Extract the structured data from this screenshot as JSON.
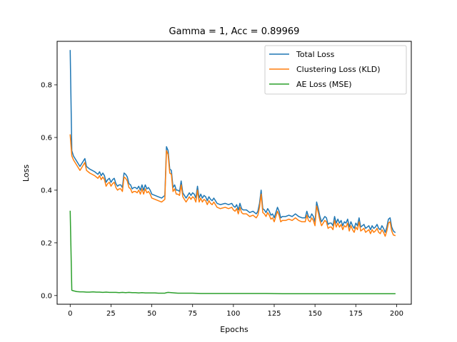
{
  "chart_data": {
    "type": "line",
    "title": "Gamma = 1, Acc = 0.89969",
    "xlabel": "Epochs",
    "ylabel": "Loss",
    "xlim": [
      -8,
      209
    ],
    "ylim": [
      -0.033,
      0.965
    ],
    "xticks": [
      0,
      25,
      50,
      75,
      100,
      125,
      150,
      175,
      200
    ],
    "yticks": [
      0.0,
      0.2,
      0.4,
      0.6,
      0.8
    ],
    "ytick_labels": [
      "0.0",
      "0.2",
      "0.4",
      "0.6",
      "0.8"
    ],
    "grid": false,
    "legend_position": "upper-right",
    "series": [
      {
        "name": "Total Loss",
        "color": "#1f77b4",
        "x": [
          0,
          1,
          2,
          4,
          6,
          8,
          9,
          10,
          12,
          15,
          17,
          18,
          19,
          20,
          21,
          22,
          23,
          24,
          25,
          26,
          27,
          28,
          29,
          30,
          31,
          32,
          33,
          34,
          35,
          36,
          37,
          38,
          39,
          40,
          41,
          42,
          43,
          44,
          45,
          46,
          47,
          48,
          49,
          50,
          52,
          54,
          56,
          58,
          59,
          60,
          61,
          62,
          63,
          64,
          65,
          66,
          67,
          68,
          69,
          70,
          71,
          72,
          73,
          74,
          75,
          76,
          77,
          78,
          79,
          80,
          81,
          82,
          83,
          84,
          85,
          86,
          87,
          88,
          90,
          92,
          95,
          97,
          99,
          100,
          101,
          102,
          103,
          104,
          105,
          106,
          108,
          110,
          112,
          114,
          115,
          116,
          117,
          118,
          119,
          120,
          121,
          122,
          123,
          124,
          125,
          126,
          127,
          128,
          129,
          130,
          132,
          134,
          136,
          138,
          140,
          142,
          144,
          145,
          146,
          147,
          148,
          149,
          150,
          151,
          152,
          153,
          154,
          155,
          156,
          157,
          158,
          159,
          160,
          161,
          162,
          163,
          164,
          165,
          166,
          167,
          168,
          169,
          170,
          171,
          172,
          173,
          174,
          175,
          176,
          177,
          178,
          179,
          180,
          181,
          182,
          183,
          184,
          185,
          186,
          187,
          188,
          189,
          190,
          191,
          192,
          193,
          194,
          195,
          196,
          197,
          198,
          199
        ],
        "y": [
          0.93,
          0.55,
          0.53,
          0.51,
          0.49,
          0.51,
          0.52,
          0.49,
          0.48,
          0.47,
          0.46,
          0.47,
          0.455,
          0.465,
          0.455,
          0.43,
          0.44,
          0.445,
          0.43,
          0.44,
          0.445,
          0.425,
          0.415,
          0.42,
          0.42,
          0.41,
          0.465,
          0.46,
          0.45,
          0.425,
          0.42,
          0.405,
          0.41,
          0.41,
          0.405,
          0.415,
          0.4,
          0.42,
          0.4,
          0.42,
          0.405,
          0.41,
          0.4,
          0.385,
          0.38,
          0.375,
          0.37,
          0.38,
          0.565,
          0.55,
          0.48,
          0.475,
          0.41,
          0.42,
          0.4,
          0.4,
          0.395,
          0.435,
          0.39,
          0.38,
          0.37,
          0.38,
          0.39,
          0.38,
          0.39,
          0.385,
          0.37,
          0.415,
          0.37,
          0.385,
          0.37,
          0.38,
          0.375,
          0.36,
          0.375,
          0.365,
          0.36,
          0.37,
          0.35,
          0.345,
          0.35,
          0.345,
          0.35,
          0.34,
          0.335,
          0.345,
          0.325,
          0.35,
          0.33,
          0.325,
          0.325,
          0.315,
          0.32,
          0.31,
          0.32,
          0.35,
          0.4,
          0.33,
          0.325,
          0.315,
          0.33,
          0.32,
          0.305,
          0.31,
          0.295,
          0.315,
          0.335,
          0.32,
          0.295,
          0.3,
          0.3,
          0.305,
          0.3,
          0.31,
          0.3,
          0.295,
          0.295,
          0.32,
          0.3,
          0.295,
          0.31,
          0.3,
          0.28,
          0.355,
          0.33,
          0.3,
          0.28,
          0.29,
          0.3,
          0.295,
          0.27,
          0.275,
          0.275,
          0.265,
          0.3,
          0.275,
          0.29,
          0.275,
          0.285,
          0.265,
          0.28,
          0.275,
          0.29,
          0.26,
          0.28,
          0.265,
          0.255,
          0.275,
          0.265,
          0.295,
          0.26,
          0.265,
          0.27,
          0.255,
          0.26,
          0.265,
          0.25,
          0.265,
          0.255,
          0.26,
          0.27,
          0.255,
          0.25,
          0.265,
          0.255,
          0.24,
          0.26,
          0.29,
          0.295,
          0.26,
          0.245,
          0.24
        ]
      },
      {
        "name": "Clustering Loss (KLD)",
        "color": "#ff7f0e",
        "x": [
          0,
          1,
          2,
          4,
          6,
          8,
          9,
          10,
          12,
          15,
          17,
          18,
          19,
          20,
          21,
          22,
          23,
          24,
          25,
          26,
          27,
          28,
          29,
          30,
          31,
          32,
          33,
          34,
          35,
          36,
          37,
          38,
          39,
          40,
          41,
          42,
          43,
          44,
          45,
          46,
          47,
          48,
          49,
          50,
          52,
          54,
          56,
          58,
          59,
          60,
          61,
          62,
          63,
          64,
          65,
          66,
          67,
          68,
          69,
          70,
          71,
          72,
          73,
          74,
          75,
          76,
          77,
          78,
          79,
          80,
          81,
          82,
          83,
          84,
          85,
          86,
          87,
          88,
          90,
          92,
          95,
          97,
          99,
          100,
          101,
          102,
          103,
          104,
          105,
          106,
          108,
          110,
          112,
          114,
          115,
          116,
          117,
          118,
          119,
          120,
          121,
          122,
          123,
          124,
          125,
          126,
          127,
          128,
          129,
          130,
          132,
          134,
          136,
          138,
          140,
          142,
          144,
          145,
          146,
          147,
          148,
          149,
          150,
          151,
          152,
          153,
          154,
          155,
          156,
          157,
          158,
          159,
          160,
          161,
          162,
          163,
          164,
          165,
          166,
          167,
          168,
          169,
          170,
          171,
          172,
          173,
          174,
          175,
          176,
          177,
          178,
          179,
          180,
          181,
          182,
          183,
          184,
          185,
          186,
          187,
          188,
          189,
          190,
          191,
          192,
          193,
          194,
          195,
          196,
          197,
          198,
          199
        ],
        "y": [
          0.61,
          0.53,
          0.515,
          0.495,
          0.475,
          0.495,
          0.505,
          0.475,
          0.465,
          0.455,
          0.445,
          0.455,
          0.44,
          0.45,
          0.44,
          0.415,
          0.425,
          0.43,
          0.415,
          0.425,
          0.43,
          0.41,
          0.4,
          0.405,
          0.405,
          0.395,
          0.45,
          0.445,
          0.435,
          0.41,
          0.405,
          0.39,
          0.395,
          0.395,
          0.39,
          0.4,
          0.385,
          0.405,
          0.385,
          0.405,
          0.39,
          0.395,
          0.385,
          0.37,
          0.365,
          0.36,
          0.355,
          0.365,
          0.55,
          0.535,
          0.465,
          0.46,
          0.395,
          0.405,
          0.385,
          0.385,
          0.38,
          0.42,
          0.375,
          0.365,
          0.355,
          0.365,
          0.375,
          0.365,
          0.375,
          0.37,
          0.355,
          0.4,
          0.355,
          0.37,
          0.355,
          0.365,
          0.36,
          0.345,
          0.36,
          0.35,
          0.345,
          0.355,
          0.335,
          0.33,
          0.335,
          0.33,
          0.335,
          0.325,
          0.32,
          0.33,
          0.31,
          0.335,
          0.315,
          0.31,
          0.31,
          0.3,
          0.305,
          0.295,
          0.305,
          0.335,
          0.385,
          0.315,
          0.31,
          0.3,
          0.315,
          0.305,
          0.29,
          0.295,
          0.28,
          0.3,
          0.32,
          0.305,
          0.28,
          0.285,
          0.285,
          0.29,
          0.285,
          0.295,
          0.285,
          0.28,
          0.28,
          0.305,
          0.285,
          0.28,
          0.295,
          0.285,
          0.265,
          0.34,
          0.315,
          0.285,
          0.265,
          0.275,
          0.285,
          0.28,
          0.255,
          0.26,
          0.26,
          0.25,
          0.285,
          0.26,
          0.275,
          0.26,
          0.27,
          0.25,
          0.265,
          0.26,
          0.275,
          0.245,
          0.265,
          0.25,
          0.24,
          0.26,
          0.25,
          0.28,
          0.245,
          0.25,
          0.255,
          0.24,
          0.245,
          0.25,
          0.235,
          0.25,
          0.24,
          0.245,
          0.255,
          0.24,
          0.235,
          0.25,
          0.24,
          0.225,
          0.245,
          0.275,
          0.28,
          0.245,
          0.23,
          0.228
        ]
      },
      {
        "name": "AE Loss (MSE)",
        "color": "#2ca02c",
        "x": [
          0,
          1,
          2,
          4,
          6,
          8,
          10,
          12,
          14,
          16,
          18,
          20,
          22,
          24,
          26,
          28,
          30,
          32,
          34,
          36,
          38,
          40,
          42,
          44,
          46,
          48,
          50,
          52,
          54,
          56,
          58,
          59,
          60,
          62,
          64,
          66,
          68,
          70,
          75,
          80,
          85,
          90,
          95,
          100,
          110,
          120,
          130,
          140,
          150,
          160,
          170,
          180,
          190,
          199
        ],
        "y": [
          0.32,
          0.02,
          0.018,
          0.015,
          0.014,
          0.014,
          0.013,
          0.013,
          0.014,
          0.013,
          0.013,
          0.012,
          0.013,
          0.012,
          0.012,
          0.012,
          0.011,
          0.012,
          0.011,
          0.012,
          0.011,
          0.011,
          0.01,
          0.011,
          0.01,
          0.01,
          0.01,
          0.01,
          0.009,
          0.009,
          0.009,
          0.011,
          0.012,
          0.011,
          0.01,
          0.009,
          0.009,
          0.009,
          0.009,
          0.008,
          0.008,
          0.008,
          0.008,
          0.008,
          0.008,
          0.008,
          0.007,
          0.007,
          0.007,
          0.007,
          0.007,
          0.007,
          0.007,
          0.007
        ]
      }
    ]
  }
}
